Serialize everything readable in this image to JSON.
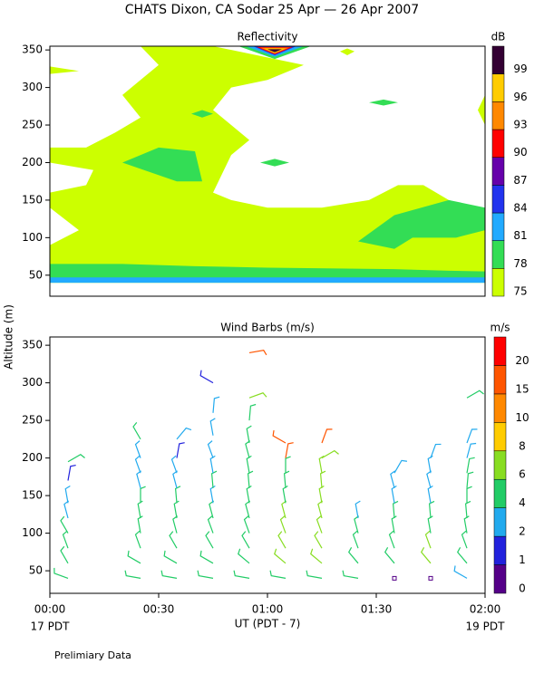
{
  "title": "CHATS Dixon, CA  Sodar  25 Apr — 26 Apr 2007",
  "ylabel": "Altitude (m)",
  "xlabel": "UT  (PDT - 7)",
  "x_start_note": "17 PDT",
  "x_end_note": "19 PDT",
  "footnote": "Prelimiary Data",
  "chart_data": [
    {
      "type": "contour",
      "title": "Reflectivity",
      "colorbar_label": "dB",
      "xlim": [
        0,
        120
      ],
      "ylim": [
        22,
        355
      ],
      "yticks": [
        50,
        100,
        150,
        200,
        250,
        300,
        350
      ],
      "levels": [
        75,
        78,
        81,
        84,
        87,
        90,
        93,
        96,
        99
      ],
      "colors": [
        "#ccff00",
        "#33dd55",
        "#22aaff",
        "#2233ee",
        "#6600aa",
        "#ff0000",
        "#ff8800",
        "#ffcc00",
        "#330033"
      ],
      "contours": [
        {
          "level": 75,
          "points": [
            [
              0,
              40
            ],
            [
              120,
              40
            ],
            [
              120,
              135
            ],
            [
              110,
              150
            ],
            [
              103,
              170
            ],
            [
              96,
              170
            ],
            [
              88,
              150
            ],
            [
              75,
              140
            ],
            [
              60,
              140
            ],
            [
              50,
              150
            ],
            [
              45,
              160
            ],
            [
              47,
              180
            ],
            [
              50,
              210
            ],
            [
              55,
              230
            ],
            [
              50,
              250
            ],
            [
              45,
              270
            ],
            [
              50,
              300
            ],
            [
              60,
              310
            ],
            [
              70,
              330
            ],
            [
              55,
              345
            ],
            [
              45,
              355
            ],
            [
              25,
              355
            ],
            [
              30,
              330
            ],
            [
              25,
              310
            ],
            [
              20,
              290
            ],
            [
              25,
              260
            ],
            [
              18,
              240
            ],
            [
              10,
              220
            ],
            [
              0,
              220
            ],
            [
              0,
              200
            ],
            [
              12,
              190
            ],
            [
              10,
              170
            ],
            [
              0,
              160
            ],
            [
              0,
              140
            ],
            [
              8,
              110
            ],
            [
              0,
              90
            ]
          ]
        },
        {
          "level": 75,
          "points": [
            [
              0,
              318
            ],
            [
              8,
              322
            ],
            [
              0,
              328
            ]
          ]
        },
        {
          "level": 75,
          "points": [
            [
              120,
              250
            ],
            [
              118,
              270
            ],
            [
              120,
              290
            ]
          ]
        },
        {
          "level": 75,
          "points": [
            [
              80,
              348
            ],
            [
              82,
              352
            ],
            [
              84,
              348
            ],
            [
              82,
              343
            ]
          ]
        },
        {
          "level": 78,
          "points": [
            [
              0,
              40
            ],
            [
              120,
              40
            ],
            [
              120,
              55
            ],
            [
              110,
              56
            ],
            [
              95,
              58
            ],
            [
              60,
              60
            ],
            [
              40,
              62
            ],
            [
              20,
              65
            ],
            [
              0,
              65
            ]
          ]
        },
        {
          "level": 78,
          "points": [
            [
              85,
              95
            ],
            [
              95,
              130
            ],
            [
              110,
              150
            ],
            [
              120,
              140
            ],
            [
              120,
              110
            ],
            [
              112,
              100
            ],
            [
              100,
              100
            ],
            [
              95,
              85
            ]
          ]
        },
        {
          "level": 78,
          "points": [
            [
              20,
              200
            ],
            [
              30,
              220
            ],
            [
              40,
              215
            ],
            [
              42,
              175
            ],
            [
              35,
              175
            ]
          ]
        },
        {
          "level": 78,
          "points": [
            [
              39,
              265
            ],
            [
              42,
              270
            ],
            [
              45,
              265
            ],
            [
              42,
              260
            ]
          ]
        },
        {
          "level": 78,
          "points": [
            [
              58,
              200
            ],
            [
              62,
              205
            ],
            [
              66,
              200
            ],
            [
              62,
              195
            ]
          ]
        },
        {
          "level": 78,
          "points": [
            [
              88,
              280
            ],
            [
              92,
              284
            ],
            [
              96,
              280
            ],
            [
              92,
              276
            ]
          ]
        },
        {
          "level": 78,
          "points": [
            [
              52,
              355
            ],
            [
              72,
              355
            ],
            [
              62,
              338
            ]
          ]
        },
        {
          "level": 81,
          "points": [
            [
              0,
              40
            ],
            [
              120,
              40
            ],
            [
              120,
              47
            ],
            [
              0,
              47
            ]
          ]
        },
        {
          "level": 81,
          "points": [
            [
              54,
              355
            ],
            [
              70,
              355
            ],
            [
              62,
              341
            ]
          ]
        },
        {
          "level": 84,
          "points": [
            [
              56,
              355
            ],
            [
              68,
              355
            ],
            [
              62,
              343
            ]
          ]
        },
        {
          "level": 90,
          "points": [
            [
              57,
              354
            ],
            [
              67,
              354
            ],
            [
              62,
              344
            ]
          ]
        },
        {
          "level": 93,
          "points": [
            [
              58,
              353
            ],
            [
              66,
              353
            ],
            [
              62,
              345
            ]
          ]
        },
        {
          "level": 96,
          "points": [
            [
              59,
              352
            ],
            [
              65,
              352
            ],
            [
              62,
              346
            ]
          ]
        },
        {
          "level": 99,
          "points": [
            [
              60,
              351
            ],
            [
              64,
              351
            ],
            [
              62,
              347
            ]
          ]
        }
      ]
    },
    {
      "type": "barb",
      "title": "Wind Barbs (m/s)",
      "colorbar_label": "m/s",
      "xlim": [
        0,
        120
      ],
      "ylim": [
        20,
        361
      ],
      "yticks": [
        50,
        100,
        150,
        200,
        250,
        300,
        350
      ],
      "xticks": [
        {
          "value": 0,
          "label": "00:00"
        },
        {
          "value": 30,
          "label": "00:30"
        },
        {
          "value": 60,
          "label": "01:00"
        },
        {
          "value": 90,
          "label": "01:30"
        },
        {
          "value": 120,
          "label": "02:00"
        }
      ],
      "levels": [
        0,
        1,
        2,
        4,
        6,
        8,
        10,
        15,
        20
      ],
      "colors": [
        "#550088",
        "#2222dd",
        "#22aaee",
        "#22cc66",
        "#88dd22",
        "#ffcc00",
        "#ff8800",
        "#ff5500",
        "#ff0000"
      ],
      "barbs": [
        {
          "time": 5,
          "altitude": [
            40,
            60,
            80,
            100,
            120,
            140,
            170,
            195
          ],
          "speed": [
            4,
            4,
            4,
            4,
            3,
            2,
            1,
            5
          ],
          "direction": [
            290,
            330,
            340,
            330,
            345,
            350,
            10,
            60
          ]
        },
        {
          "time": 25,
          "altitude": [
            40,
            60,
            80,
            100,
            120,
            140,
            160,
            180,
            200,
            225
          ],
          "speed": [
            4,
            4,
            4,
            4,
            4,
            4,
            3,
            3,
            2,
            5
          ],
          "direction": [
            280,
            300,
            340,
            350,
            350,
            0,
            345,
            340,
            340,
            330
          ]
        },
        {
          "time": 35,
          "altitude": [
            40,
            60,
            80,
            100,
            120,
            140,
            160,
            180,
            200,
            225
          ],
          "speed": [
            4,
            4,
            4,
            4,
            4,
            4,
            3,
            3,
            1,
            3
          ],
          "direction": [
            280,
            300,
            330,
            345,
            350,
            355,
            345,
            340,
            10,
            40
          ]
        },
        {
          "time": 45,
          "altitude": [
            40,
            60,
            80,
            100,
            120,
            140,
            160,
            180,
            200,
            230,
            260,
            300
          ],
          "speed": [
            4,
            4,
            4,
            4,
            4,
            3,
            4,
            3,
            3,
            3,
            2,
            1
          ],
          "direction": [
            280,
            300,
            330,
            340,
            345,
            350,
            355,
            350,
            340,
            350,
            5,
            300
          ]
        },
        {
          "time": 55,
          "altitude": [
            40,
            60,
            80,
            100,
            120,
            140,
            160,
            180,
            200,
            220,
            250,
            280,
            340
          ],
          "speed": [
            4,
            4,
            4,
            5,
            5,
            5,
            4,
            4,
            4,
            4,
            4,
            6,
            15
          ],
          "direction": [
            280,
            310,
            330,
            340,
            345,
            350,
            355,
            350,
            345,
            350,
            5,
            70,
            80
          ]
        },
        {
          "time": 65,
          "altitude": [
            40,
            60,
            80,
            100,
            120,
            140,
            160,
            180,
            200,
            220
          ],
          "speed": [
            4,
            6,
            6,
            6,
            6,
            5,
            5,
            4,
            15,
            15
          ],
          "direction": [
            280,
            310,
            330,
            340,
            345,
            350,
            355,
            0,
            10,
            300
          ]
        },
        {
          "time": 75,
          "altitude": [
            40,
            60,
            80,
            100,
            120,
            140,
            160,
            180,
            200,
            220
          ],
          "speed": [
            4,
            6,
            6,
            6,
            6,
            6,
            6,
            6,
            6,
            15
          ],
          "direction": [
            280,
            310,
            330,
            340,
            345,
            350,
            355,
            350,
            60,
            20
          ]
        },
        {
          "time": 85,
          "altitude": [
            40,
            60,
            80,
            100,
            120
          ],
          "speed": [
            4,
            4,
            4,
            4,
            2
          ],
          "direction": [
            280,
            320,
            340,
            345,
            350
          ]
        },
        {
          "time": 95,
          "altitude": [
            40,
            60,
            80,
            100,
            120,
            140,
            160,
            180
          ],
          "speed": [
            0.5,
            4,
            4,
            4,
            4,
            3,
            3,
            3
          ],
          "direction": [
            0,
            320,
            340,
            350,
            355,
            350,
            345,
            30
          ]
        },
        {
          "time": 105,
          "altitude": [
            40,
            60,
            80,
            100,
            120,
            140,
            160,
            180,
            200
          ],
          "speed": [
            0.5,
            6,
            6,
            4,
            4,
            3,
            3,
            3,
            2
          ],
          "direction": [
            0,
            320,
            340,
            350,
            355,
            350,
            345,
            350,
            20
          ]
        },
        {
          "time": 115,
          "altitude": [
            40,
            60,
            80,
            100,
            120,
            140,
            160,
            180,
            200,
            220,
            280
          ],
          "speed": [
            3,
            4,
            4,
            4,
            4,
            4,
            4,
            4,
            3,
            2,
            4
          ],
          "direction": [
            300,
            320,
            340,
            350,
            355,
            0,
            5,
            10,
            15,
            20,
            60
          ]
        }
      ]
    }
  ]
}
